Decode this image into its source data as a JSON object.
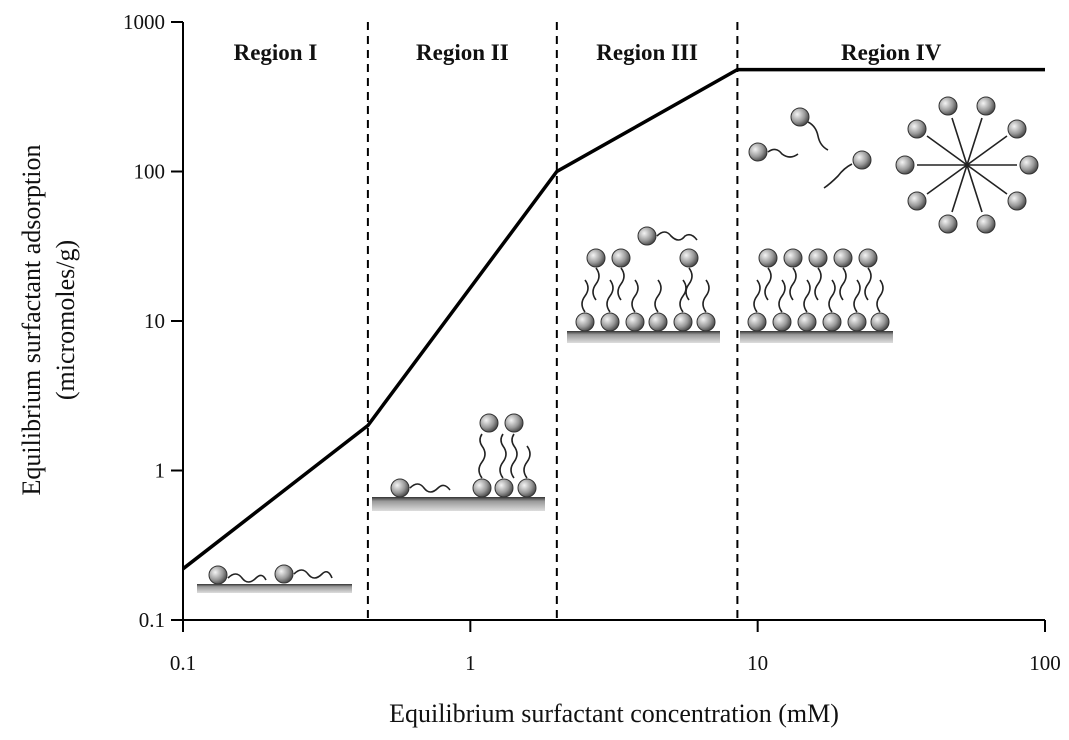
{
  "chart_data": {
    "type": "line",
    "xlabel": "Equilibrium surfactant concentration (mM)",
    "ylabel": [
      "Equilibrium surfactant adsorption",
      "(micromoles/g)"
    ],
    "xscale": "log",
    "yscale": "log",
    "xlim": [
      0.1,
      100
    ],
    "ylim": [
      0.1,
      1000
    ],
    "xticks": [
      0.1,
      1,
      10,
      100
    ],
    "yticks": [
      0.1,
      1,
      10,
      100,
      1000
    ],
    "x": [
      0.1,
      0.44,
      2,
      8.5,
      100
    ],
    "series": [
      {
        "color": "#000000",
        "values": [
          0.22,
          2,
          100,
          480,
          480
        ]
      }
    ],
    "dividers": [
      0.44,
      2,
      8.5
    ],
    "region_labels": [
      "Region I",
      "Region II",
      "Region III",
      "Region IV"
    ]
  }
}
